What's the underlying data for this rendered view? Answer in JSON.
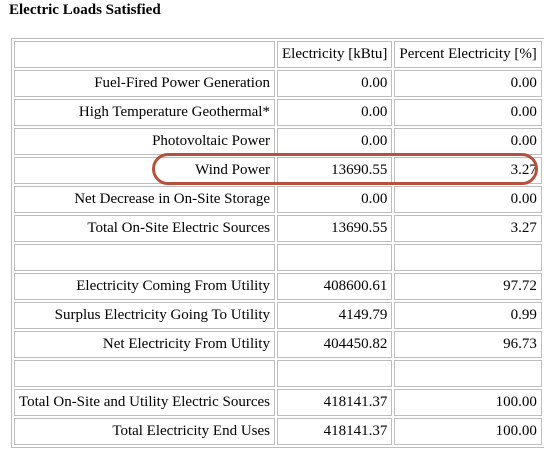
{
  "title": "Electric Loads Satisfied",
  "columns": [
    "Electricity [kBtu]",
    "Percent Electricity [%]"
  ],
  "rows": [
    {
      "label": "Fuel-Fired Power Generation",
      "electricity": "0.00",
      "percent": "0.00"
    },
    {
      "label": "High Temperature Geothermal*",
      "electricity": "0.00",
      "percent": "0.00"
    },
    {
      "label": "Photovoltaic Power",
      "electricity": "0.00",
      "percent": "0.00"
    },
    {
      "label": "Wind Power",
      "electricity": "13690.55",
      "percent": "3.27"
    },
    {
      "label": "Net Decrease in On-Site Storage",
      "electricity": "0.00",
      "percent": "0.00"
    },
    {
      "label": "Total On-Site Electric Sources",
      "electricity": "13690.55",
      "percent": "3.27"
    },
    {
      "label": "",
      "electricity": "",
      "percent": ""
    },
    {
      "label": "Electricity Coming From Utility",
      "electricity": "408600.61",
      "percent": "97.72"
    },
    {
      "label": "Surplus Electricity Going To Utility",
      "electricity": "4149.79",
      "percent": "0.99"
    },
    {
      "label": "Net Electricity From Utility",
      "electricity": "404450.82",
      "percent": "96.73"
    },
    {
      "label": "",
      "electricity": "",
      "percent": ""
    },
    {
      "label": "Total On-Site and Utility Electric Sources",
      "electricity": "418141.37",
      "percent": "100.00"
    },
    {
      "label": "Total Electricity End Uses",
      "electricity": "418141.37",
      "percent": "100.00"
    }
  ],
  "annotation": {
    "highlighted_row": "Wind Power",
    "color": "#b5513c"
  }
}
